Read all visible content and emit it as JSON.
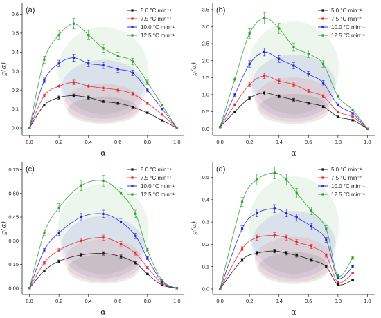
{
  "chart_data": [
    {
      "type": "line",
      "panel_label": "(a)",
      "xlabel": "α",
      "ylabel": "g(α)",
      "xlim": [
        -0.05,
        1.05
      ],
      "ylim": [
        -0.04,
        0.66
      ],
      "xticks": [
        "0.0",
        "0.2",
        "0.4",
        "0.6",
        "0.8",
        "1.0"
      ],
      "yticks": [
        "0.0",
        "0.1",
        "0.2",
        "0.3",
        "0.4",
        "0.5",
        "0.6"
      ],
      "legend_position": "top-right",
      "x": [
        0.0,
        0.1,
        0.2,
        0.3,
        0.4,
        0.5,
        0.6,
        0.7,
        0.8,
        0.9,
        1.0
      ],
      "series": [
        {
          "name": "5.0 °C min⁻¹",
          "color": "#111111",
          "values": [
            0.0,
            0.12,
            0.16,
            0.17,
            0.16,
            0.14,
            0.13,
            0.11,
            0.08,
            0.04,
            0.0
          ]
        },
        {
          "name": "7.5 °C min⁻¹",
          "color": "#e8262b",
          "values": [
            0.0,
            0.17,
            0.22,
            0.24,
            0.22,
            0.21,
            0.2,
            0.18,
            0.13,
            0.07,
            0.0
          ]
        },
        {
          "name": "10.0 °C min⁻¹",
          "color": "#2424e0",
          "values": [
            0.0,
            0.25,
            0.34,
            0.37,
            0.34,
            0.33,
            0.31,
            0.29,
            0.2,
            0.1,
            0.0
          ]
        },
        {
          "name": "12.5 °C min⁻¹",
          "color": "#2aa02a",
          "values": [
            0.0,
            0.36,
            0.49,
            0.55,
            0.49,
            0.42,
            0.38,
            0.35,
            0.24,
            0.12,
            0.0
          ]
        }
      ]
    },
    {
      "type": "line",
      "panel_label": "(b)",
      "xlabel": "α",
      "ylabel": "g(α)",
      "xlim": [
        -0.05,
        1.05
      ],
      "ylim": [
        -0.2,
        3.7
      ],
      "xticks": [
        "0.0",
        "0.2",
        "0.4",
        "0.6",
        "0.8",
        "1.0"
      ],
      "yticks": [
        "0.0",
        "0.5",
        "1.0",
        "1.5",
        "2.0",
        "2.5",
        "3.0",
        "3.5"
      ],
      "legend_position": "top-right",
      "x": [
        0.0,
        0.1,
        0.2,
        0.3,
        0.4,
        0.5,
        0.6,
        0.7,
        0.8,
        0.9,
        1.0
      ],
      "series": [
        {
          "name": "5.0 °C min⁻¹",
          "color": "#111111",
          "values": [
            0.05,
            0.5,
            0.9,
            1.05,
            0.95,
            0.85,
            0.75,
            0.65,
            0.35,
            0.25,
            0.0
          ]
        },
        {
          "name": "7.5 °C min⁻¹",
          "color": "#e8262b",
          "values": [
            0.05,
            0.7,
            1.3,
            1.55,
            1.4,
            1.3,
            1.1,
            0.95,
            0.5,
            0.35,
            0.0
          ]
        },
        {
          "name": "10.0 °C min⁻¹",
          "color": "#2424e0",
          "values": [
            0.05,
            1.0,
            1.9,
            2.25,
            2.05,
            1.85,
            1.6,
            1.35,
            0.7,
            0.45,
            0.0
          ]
        },
        {
          "name": "12.5 °C min⁻¹",
          "color": "#2aa02a",
          "values": [
            0.05,
            1.45,
            2.8,
            3.25,
            2.95,
            2.4,
            2.2,
            1.9,
            0.95,
            0.55,
            0.0
          ]
        }
      ]
    },
    {
      "type": "line",
      "panel_label": "(c)",
      "xlabel": "α",
      "ylabel": "g(α)",
      "xlim": [
        -0.05,
        1.05
      ],
      "ylim": [
        -0.04,
        0.8
      ],
      "xticks": [
        "0.0",
        "0.2",
        "0.4",
        "0.6",
        "0.8",
        "1.0"
      ],
      "yticks": [
        "0.00",
        "0.15",
        "0.30",
        "0.45",
        "0.60",
        "0.75"
      ],
      "legend_position": "top-right",
      "x": [
        0.0,
        0.1,
        0.2,
        0.35,
        0.5,
        0.62,
        0.72,
        0.8,
        0.9,
        1.0
      ],
      "series": [
        {
          "name": "5.0 °C min⁻¹",
          "color": "#111111",
          "values": [
            0.0,
            0.11,
            0.17,
            0.21,
            0.22,
            0.2,
            0.16,
            0.09,
            0.02,
            0.0
          ]
        },
        {
          "name": "7.5 °C min⁻¹",
          "color": "#e8262b",
          "values": [
            0.0,
            0.16,
            0.24,
            0.3,
            0.32,
            0.28,
            0.22,
            0.13,
            0.03,
            0.0
          ]
        },
        {
          "name": "10.0 °C min⁻¹",
          "color": "#2424e0",
          "values": [
            0.0,
            0.24,
            0.35,
            0.45,
            0.47,
            0.42,
            0.33,
            0.19,
            0.04,
            0.0
          ]
        },
        {
          "name": "12.5 °C min⁻¹",
          "color": "#2aa02a",
          "values": [
            0.0,
            0.35,
            0.51,
            0.65,
            0.68,
            0.6,
            0.47,
            0.24,
            0.05,
            0.0
          ]
        }
      ]
    },
    {
      "type": "line",
      "panel_label": "(d)",
      "xlabel": "α",
      "ylabel": "g(α)",
      "xlim": [
        -0.05,
        1.05
      ],
      "ylim": [
        -0.025,
        0.57
      ],
      "xticks": [
        "0.0",
        "0.2",
        "0.4",
        "0.6",
        "0.8",
        "1.0"
      ],
      "yticks": [
        "0.0",
        "0.1",
        "0.2",
        "0.3",
        "0.4",
        "0.5"
      ],
      "legend_position": "top-right",
      "x": [
        0.0,
        0.15,
        0.25,
        0.37,
        0.45,
        0.52,
        0.62,
        0.72,
        0.8,
        0.9
      ],
      "series": [
        {
          "name": "5.0 °C min⁻¹",
          "color": "#111111",
          "values": [
            0.0,
            0.13,
            0.16,
            0.17,
            0.16,
            0.15,
            0.13,
            0.1,
            0.02,
            0.04
          ]
        },
        {
          "name": "7.5 °C min⁻¹",
          "color": "#e8262b",
          "values": [
            0.0,
            0.18,
            0.23,
            0.24,
            0.23,
            0.21,
            0.19,
            0.15,
            0.03,
            0.07
          ]
        },
        {
          "name": "10.0 °C min⁻¹",
          "color": "#2424e0",
          "values": [
            0.0,
            0.27,
            0.34,
            0.36,
            0.34,
            0.32,
            0.28,
            0.22,
            0.05,
            0.1
          ]
        },
        {
          "name": "12.5 °C min⁻¹",
          "color": "#2aa02a",
          "values": [
            0.0,
            0.39,
            0.49,
            0.52,
            0.49,
            0.43,
            0.35,
            0.27,
            0.06,
            0.14
          ]
        }
      ]
    }
  ]
}
